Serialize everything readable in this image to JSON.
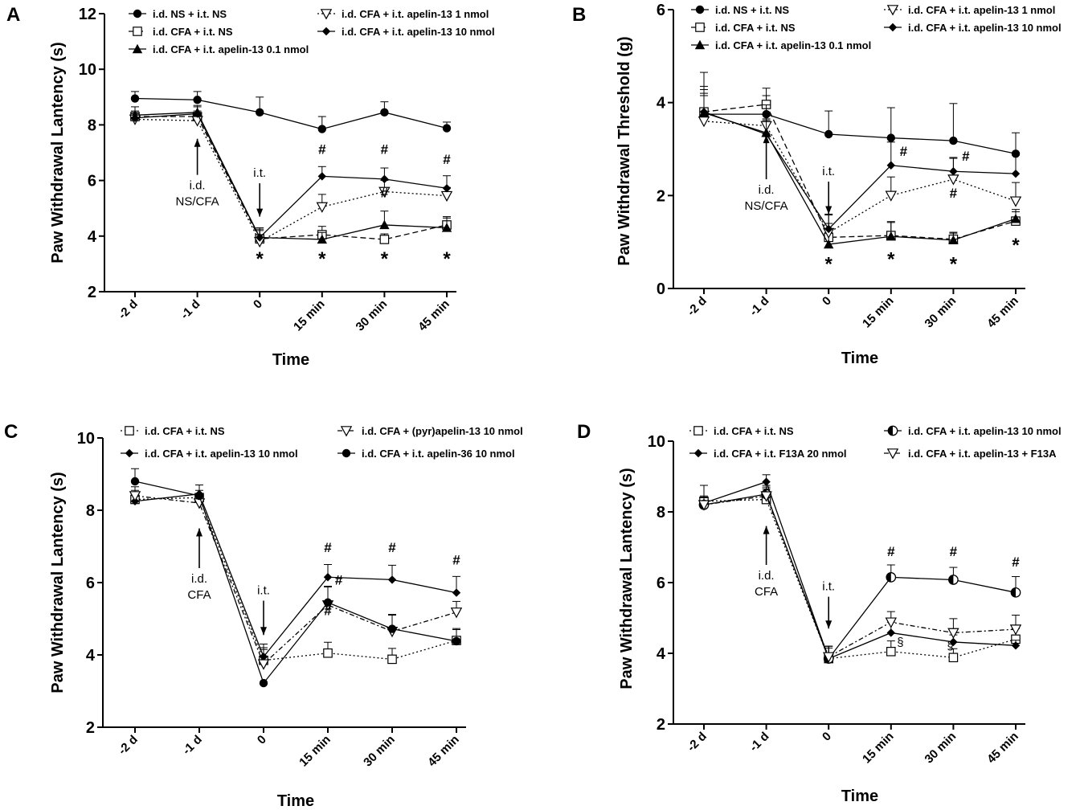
{
  "chart_data": [
    {
      "panel": "A",
      "type": "line",
      "ylabel": "Paw Withdrawal Lantency (s)",
      "xlabel": "Time",
      "categories": [
        "-2 d",
        "-1 d",
        "0",
        "15 min",
        "30 min",
        "45 min"
      ],
      "ylim": [
        2,
        12
      ],
      "yticks": [
        2,
        4,
        6,
        8,
        10,
        12
      ],
      "legend": [
        [
          "i.d. NS + i.t. NS",
          "i.d. CFA + i.t. NS",
          "i.d. CFA + i.t. apelin-13 0.1 nmol"
        ],
        [
          "i.d. CFA + i.t. apelin-13 1 nmol",
          "i.d. CFA + i.t. apelin-13 10 nmol"
        ]
      ],
      "series": [
        {
          "name": "i.d. NS + i.t. NS",
          "marker": "circle",
          "dash": "solid",
          "values": [
            8.95,
            8.9,
            8.45,
            7.85,
            8.45,
            7.88
          ],
          "err": [
            0.25,
            0.3,
            0.55,
            0.45,
            0.38,
            0.22
          ]
        },
        {
          "name": "i.d. CFA + i.t. NS",
          "marker": "square",
          "dash": "dashed",
          "values": [
            8.3,
            8.3,
            3.9,
            4.05,
            3.88,
            4.4
          ],
          "err": [
            0.2,
            0.2,
            0.3,
            0.3,
            0.2,
            0.25
          ]
        },
        {
          "name": "i.d. CFA + i.t. apelin-13 0.1 nmol",
          "marker": "triangle",
          "dash": "solid",
          "values": [
            8.35,
            8.45,
            3.95,
            3.88,
            4.4,
            4.3
          ],
          "err": [
            0.3,
            0.25,
            0.3,
            0.25,
            0.5,
            0.4
          ]
        },
        {
          "name": "i.d. CFA + i.t. apelin-13 1 nmol",
          "marker": "triangle-down-open",
          "dash": "dotted",
          "values": [
            8.2,
            8.15,
            3.8,
            5.05,
            5.6,
            5.45
          ],
          "err": [
            0.2,
            0.2,
            0.25,
            0.45,
            0.4,
            0.3
          ]
        },
        {
          "name": "i.d. CFA + i.t. apelin-13 10 nmol",
          "marker": "diamond",
          "dash": "solid",
          "values": [
            8.25,
            8.4,
            3.95,
            6.15,
            6.05,
            5.72
          ],
          "err": [
            0.2,
            0.25,
            0.35,
            0.35,
            0.4,
            0.45
          ]
        }
      ],
      "annotations": [
        {
          "text": "*",
          "x": 2,
          "y": 3.3
        },
        {
          "text": "*",
          "x": 3,
          "y": 3.3
        },
        {
          "text": "*",
          "x": 4,
          "y": 3.3
        },
        {
          "text": "*",
          "x": 5,
          "y": 3.3
        },
        {
          "text": "#",
          "x": 3,
          "y": 6.95
        },
        {
          "text": "#",
          "x": 4,
          "y": 6.95
        },
        {
          "text": "#",
          "x": 5,
          "y": 6.6
        },
        {
          "text": "#",
          "x": 4,
          "y": 5.4
        }
      ],
      "arrows": [
        {
          "label": [
            "i.d.",
            "NS/CFA"
          ],
          "dir": "up",
          "x": 1,
          "tip": 7.5,
          "tail": 6.2
        },
        {
          "label": [
            "i.t."
          ],
          "dir": "down",
          "x": 2,
          "tip": 4.7,
          "tail": 5.9
        }
      ]
    },
    {
      "panel": "B",
      "type": "line",
      "ylabel": "Paw Withdrawal Threshold (g)",
      "xlabel": "Time",
      "categories": [
        "-2 d",
        "-1 d",
        "0",
        "15 min",
        "30 min",
        "45 min"
      ],
      "ylim": [
        0,
        6
      ],
      "yticks": [
        0,
        2,
        4,
        6
      ],
      "legend": [
        [
          "i.d. NS + i.t. NS",
          "i.d. CFA + i.t. NS",
          "i.d. CFA + i.t. apelin-13 0.1 nmol"
        ],
        [
          "i.d. CFA + i.t. apelin-13 1 nmol",
          "i.d. CFA + i.t. apelin-13 10 nmol"
        ]
      ],
      "series": [
        {
          "name": "i.d. NS + i.t. NS",
          "marker": "circle",
          "dash": "solid",
          "values": [
            3.75,
            3.75,
            3.32,
            3.24,
            3.18,
            2.9
          ],
          "err": [
            0.9,
            0.4,
            0.5,
            0.65,
            0.8,
            0.45
          ]
        },
        {
          "name": "i.d. CFA + i.t. NS",
          "marker": "square",
          "dash": "dashed",
          "values": [
            3.8,
            3.96,
            1.1,
            1.14,
            1.06,
            1.45
          ],
          "err": [
            0.55,
            0.35,
            0.3,
            0.3,
            0.15,
            0.2
          ]
        },
        {
          "name": "i.d. CFA + i.t. apelin-13 0.1 nmol",
          "marker": "triangle",
          "dash": "solid",
          "values": [
            3.78,
            3.35,
            0.95,
            1.12,
            1.04,
            1.5
          ],
          "err": [
            0.5,
            0.3,
            0.25,
            0.3,
            0.15,
            0.2
          ]
        },
        {
          "name": "i.d. CFA + i.t. apelin-13 1 nmol",
          "marker": "triangle-down-open",
          "dash": "dotted",
          "values": [
            3.6,
            3.5,
            1.2,
            2.0,
            2.35,
            1.88
          ],
          "err": [
            0.6,
            0.45,
            0.4,
            0.4,
            0.45,
            0.4
          ]
        },
        {
          "name": "i.d. CFA + i.t. apelin-13 10 nmol",
          "marker": "diamond",
          "dash": "solid",
          "values": [
            3.8,
            3.32,
            1.28,
            2.65,
            2.52,
            2.47
          ],
          "err": [
            0.35,
            0.3,
            0.3,
            0.5,
            0.3,
            0.4
          ]
        }
      ],
      "annotations": [
        {
          "text": "*",
          "x": 2,
          "y": 0.6
        },
        {
          "text": "*",
          "x": 3,
          "y": 0.7
        },
        {
          "text": "*",
          "x": 4,
          "y": 0.6
        },
        {
          "text": "*",
          "x": 5,
          "y": 1.0
        },
        {
          "text": "#",
          "x": 3.2,
          "y": 2.85
        },
        {
          "text": "#",
          "x": 4.2,
          "y": 2.75
        },
        {
          "text": "#",
          "x": 4,
          "y": 1.95
        }
      ],
      "arrows": [
        {
          "label": [
            "i.d.",
            "NS/CFA"
          ],
          "dir": "up",
          "x": 1,
          "tip": 3.3,
          "tail": 2.35
        },
        {
          "label": [
            "i.t."
          ],
          "dir": "down",
          "x": 2,
          "tip": 1.6,
          "tail": 2.3
        }
      ]
    },
    {
      "panel": "C",
      "type": "line",
      "ylabel": "Paw Withdrawal Lantency (s)",
      "xlabel": "Time",
      "categories": [
        "-2 d",
        "-1 d",
        "0",
        "15 min",
        "30 min",
        "45 min"
      ],
      "ylim": [
        2,
        10
      ],
      "yticks": [
        2,
        4,
        6,
        8,
        10
      ],
      "legend": [
        [
          "i.d. CFA + i.t. NS",
          "i.d. CFA + i.t. apelin-13 10 nmol"
        ],
        [
          "i.d. CFA + (pyr)apelin-13 10 nmol",
          "i.d. CFA + i.t. apelin-36 10 nmol"
        ]
      ],
      "series": [
        {
          "name": "i.d. CFA + i.t. NS",
          "marker": "square",
          "dash": "dotted",
          "values": [
            8.3,
            8.35,
            3.85,
            4.05,
            3.88,
            4.4
          ],
          "err": [
            0.25,
            0.2,
            0.35,
            0.3,
            0.3,
            0.3
          ]
        },
        {
          "name": "i.d. CFA + i.t. apelin-13 10 nmol",
          "marker": "diamond",
          "dash": "solid",
          "values": [
            8.25,
            8.45,
            3.95,
            6.15,
            6.08,
            5.72
          ],
          "err": [
            0.2,
            0.25,
            0.35,
            0.35,
            0.4,
            0.45
          ]
        },
        {
          "name": "i.d. CFA + (pyr)apelin-13 10 nmol",
          "marker": "triangle-down-open",
          "dash": "dash-dot",
          "values": [
            8.4,
            8.2,
            3.75,
            5.38,
            4.65,
            5.18
          ],
          "err": [
            0.25,
            0.2,
            0.4,
            0.5,
            0.45,
            0.3
          ]
        },
        {
          "name": "i.d. CFA + i.t. apelin-36 10 nmol",
          "marker": "circle",
          "dash": "solid",
          "values": [
            8.8,
            8.4,
            3.22,
            5.45,
            4.72,
            4.38
          ],
          "err": [
            0.35,
            0.3,
            0.0,
            0.45,
            0.4,
            0.35
          ]
        }
      ],
      "annotations": [
        {
          "text": "#",
          "x": 3,
          "y": 6.85
        },
        {
          "text": "#",
          "x": 4,
          "y": 6.85
        },
        {
          "text": "#",
          "x": 5,
          "y": 6.5
        },
        {
          "text": "#",
          "x": 3.17,
          "y": 5.95
        },
        {
          "text": "#",
          "x": 3,
          "y": 5.1
        }
      ],
      "arrows": [
        {
          "label": [
            "i.d.",
            "CFA"
          ],
          "dir": "up",
          "x": 1,
          "tip": 7.5,
          "tail": 6.4
        },
        {
          "label": [
            "i.t."
          ],
          "dir": "down",
          "x": 2,
          "tip": 4.55,
          "tail": 5.5
        }
      ]
    },
    {
      "panel": "D",
      "type": "line",
      "ylabel": "Paw Withdrawal Lantency (s)",
      "xlabel": "Time",
      "categories": [
        "-2 d",
        "-1 d",
        "0",
        "15 min",
        "30 min",
        "45 min"
      ],
      "ylim": [
        2,
        10
      ],
      "yticks": [
        2,
        4,
        6,
        8,
        10
      ],
      "legend": [
        [
          "i.d. CFA + i.t. NS",
          "i.d. CFA + i.t. F13A 20 nmol"
        ],
        [
          "i.d. CFA + i.t. apelin-13 10 nmol",
          "i.d. CFA + i.t. apelin-13 + F13A"
        ]
      ],
      "series": [
        {
          "name": "i.d. CFA + i.t. NS",
          "marker": "square",
          "dash": "dotted",
          "values": [
            8.3,
            8.35,
            3.85,
            4.05,
            3.88,
            4.4
          ],
          "err": [
            0.45,
            0.3,
            0.35,
            0.3,
            0.25,
            0.3
          ]
        },
        {
          "name": "i.d. CFA + i.t. F13A 20 nmol",
          "marker": "diamond",
          "dash": "solid",
          "values": [
            8.25,
            8.85,
            3.85,
            4.58,
            4.32,
            4.22
          ],
          "err": [
            0.2,
            0.2,
            0.3,
            0.3,
            0.2,
            0.15
          ]
        },
        {
          "name": "i.d. CFA + i.t. apelin-13 10 nmol",
          "marker": "half-circle",
          "dash": "solid",
          "values": [
            8.2,
            8.5,
            3.85,
            6.15,
            6.08,
            5.72
          ],
          "err": [
            0.2,
            0.25,
            0.35,
            0.35,
            0.35,
            0.45
          ]
        },
        {
          "name": "i.d. CFA + i.t. apelin-13 + F13A",
          "marker": "triangle-down-open",
          "dash": "dash-dot",
          "values": [
            8.2,
            8.45,
            3.9,
            4.88,
            4.58,
            4.68
          ],
          "err": [
            0.2,
            0.25,
            0.3,
            0.3,
            0.4,
            0.4
          ]
        }
      ],
      "annotations": [
        {
          "text": "#",
          "x": 3,
          "y": 6.75
        },
        {
          "text": "#",
          "x": 4,
          "y": 6.75
        },
        {
          "text": "#",
          "x": 5,
          "y": 6.45
        },
        {
          "text": "§",
          "x": 3.15,
          "y": 4.2
        },
        {
          "text": "§",
          "x": 3.95,
          "y": 4.1
        }
      ],
      "arrows": [
        {
          "label": [
            "i.d.",
            "CFA"
          ],
          "dir": "up",
          "x": 1,
          "tip": 7.6,
          "tail": 6.5
        },
        {
          "label": [
            "i.t."
          ],
          "dir": "down",
          "x": 2,
          "tip": 4.7,
          "tail": 5.6
        }
      ]
    }
  ]
}
